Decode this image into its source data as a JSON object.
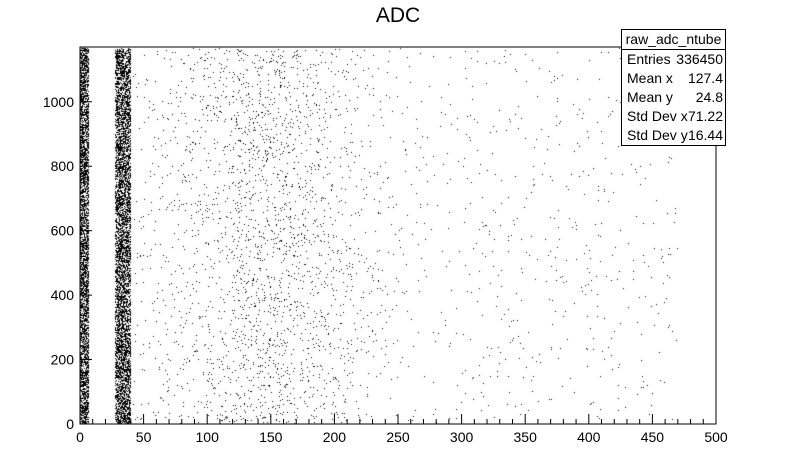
{
  "chart_data": {
    "type": "scatter",
    "title": "ADC",
    "xlabel": "",
    "ylabel": "",
    "xlim": [
      0,
      500
    ],
    "ylim": [
      0,
      1170
    ],
    "x_ticks": [
      0,
      50,
      100,
      150,
      200,
      250,
      300,
      350,
      400,
      450,
      500
    ],
    "y_ticks": [
      0,
      200,
      400,
      600,
      800,
      1000
    ],
    "grid": false,
    "legend": "none",
    "point_color": "#000000",
    "density_bands": [
      {
        "x_range": [
          0,
          8
        ],
        "relative_density": 0.55
      },
      {
        "x_range": [
          28,
          40
        ],
        "relative_density": 0.7
      },
      {
        "x_range": [
          40,
          520
        ],
        "profile": "skewed peak near x=120, tail to ~450"
      }
    ],
    "stats_box": {
      "title": "raw_adc_ntube",
      "rows": [
        {
          "label": "Entries",
          "value": "336450"
        },
        {
          "label": "Mean x",
          "value": "127.4"
        },
        {
          "label": "Mean y",
          "value": "24.8"
        },
        {
          "label": "Std Dev x",
          "value": "71.22"
        },
        {
          "label": "Std Dev y",
          "value": "16.44"
        }
      ]
    }
  }
}
